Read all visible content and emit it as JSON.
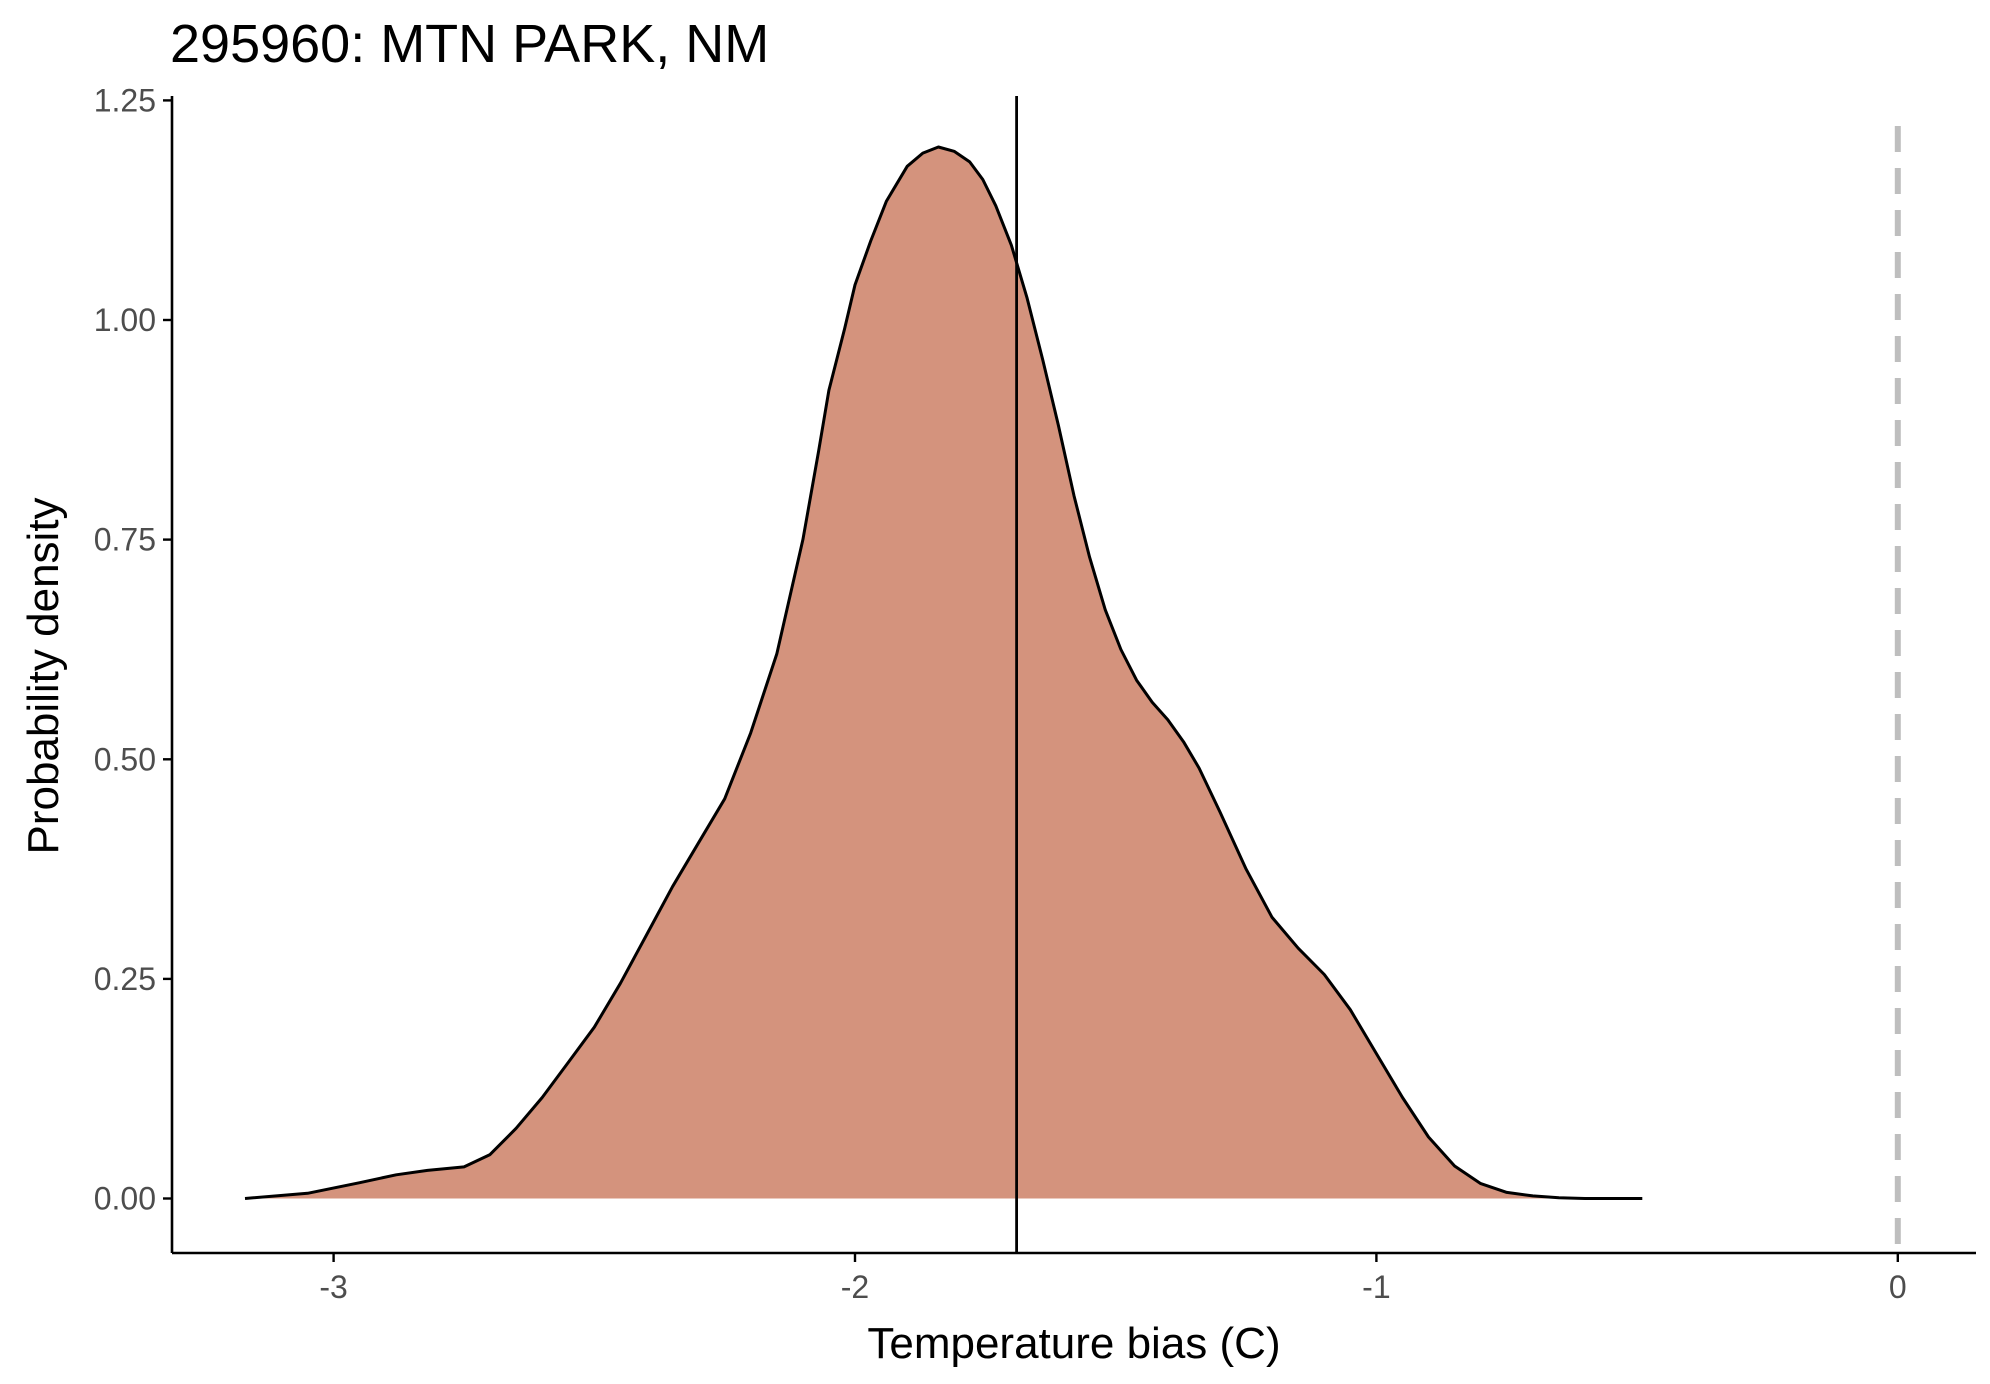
{
  "chart_data": {
    "type": "area",
    "title": "295960: MTN PARK, NM",
    "xlabel": "Temperature bias (C)",
    "ylabel": "Probability density",
    "xlim": [
      -3.31,
      0.15
    ],
    "ylim": [
      -0.062,
      1.255
    ],
    "x_ticks": [
      -3,
      -2,
      -1,
      0
    ],
    "x_tick_labels": [
      "-3",
      "-2",
      "-1",
      "0"
    ],
    "y_ticks": [
      0,
      0.25,
      0.5,
      0.75,
      1.0,
      1.25
    ],
    "y_tick_labels": [
      "0.00",
      "0.25",
      "0.50",
      "0.75",
      "1.00",
      "1.25"
    ],
    "grid": false,
    "series": [
      {
        "name": "density",
        "x": [
          -3.17,
          -3.05,
          -2.95,
          -2.88,
          -2.82,
          -2.75,
          -2.7,
          -2.65,
          -2.6,
          -2.55,
          -2.5,
          -2.45,
          -2.4,
          -2.35,
          -2.3,
          -2.25,
          -2.2,
          -2.15,
          -2.1,
          -2.07,
          -2.05,
          -2.02,
          -2.0,
          -1.97,
          -1.94,
          -1.9,
          -1.87,
          -1.84,
          -1.81,
          -1.78,
          -1.755,
          -1.73,
          -1.7,
          -1.67,
          -1.64,
          -1.61,
          -1.58,
          -1.55,
          -1.52,
          -1.49,
          -1.46,
          -1.43,
          -1.4,
          -1.37,
          -1.34,
          -1.3,
          -1.25,
          -1.2,
          -1.15,
          -1.1,
          -1.05,
          -1.0,
          -0.95,
          -0.9,
          -0.85,
          -0.8,
          -0.75,
          -0.7,
          -0.65,
          -0.6,
          -0.55,
          -0.5,
          -0.49
        ],
        "values": [
          0.0,
          0.006,
          0.018,
          0.027,
          0.032,
          0.036,
          0.05,
          0.08,
          0.115,
          0.155,
          0.195,
          0.245,
          0.3,
          0.355,
          0.405,
          0.455,
          0.53,
          0.62,
          0.75,
          0.85,
          0.92,
          0.99,
          1.04,
          1.09,
          1.135,
          1.175,
          1.19,
          1.197,
          1.192,
          1.18,
          1.16,
          1.13,
          1.085,
          1.025,
          0.955,
          0.88,
          0.8,
          0.73,
          0.67,
          0.625,
          0.59,
          0.565,
          0.545,
          0.52,
          0.49,
          0.44,
          0.375,
          0.32,
          0.285,
          0.255,
          0.215,
          0.165,
          0.115,
          0.07,
          0.037,
          0.017,
          0.007,
          0.003,
          0.001,
          0.0,
          0.0,
          0.0,
          0.0
        ],
        "fill_color": "#d4937d",
        "line_color": "#000000"
      }
    ],
    "annotations": [
      {
        "type": "vline",
        "x": -1.69,
        "style": "solid",
        "color": "#000000"
      },
      {
        "type": "vline",
        "x": 0,
        "style": "dashed",
        "color": "#bebebe"
      }
    ]
  }
}
